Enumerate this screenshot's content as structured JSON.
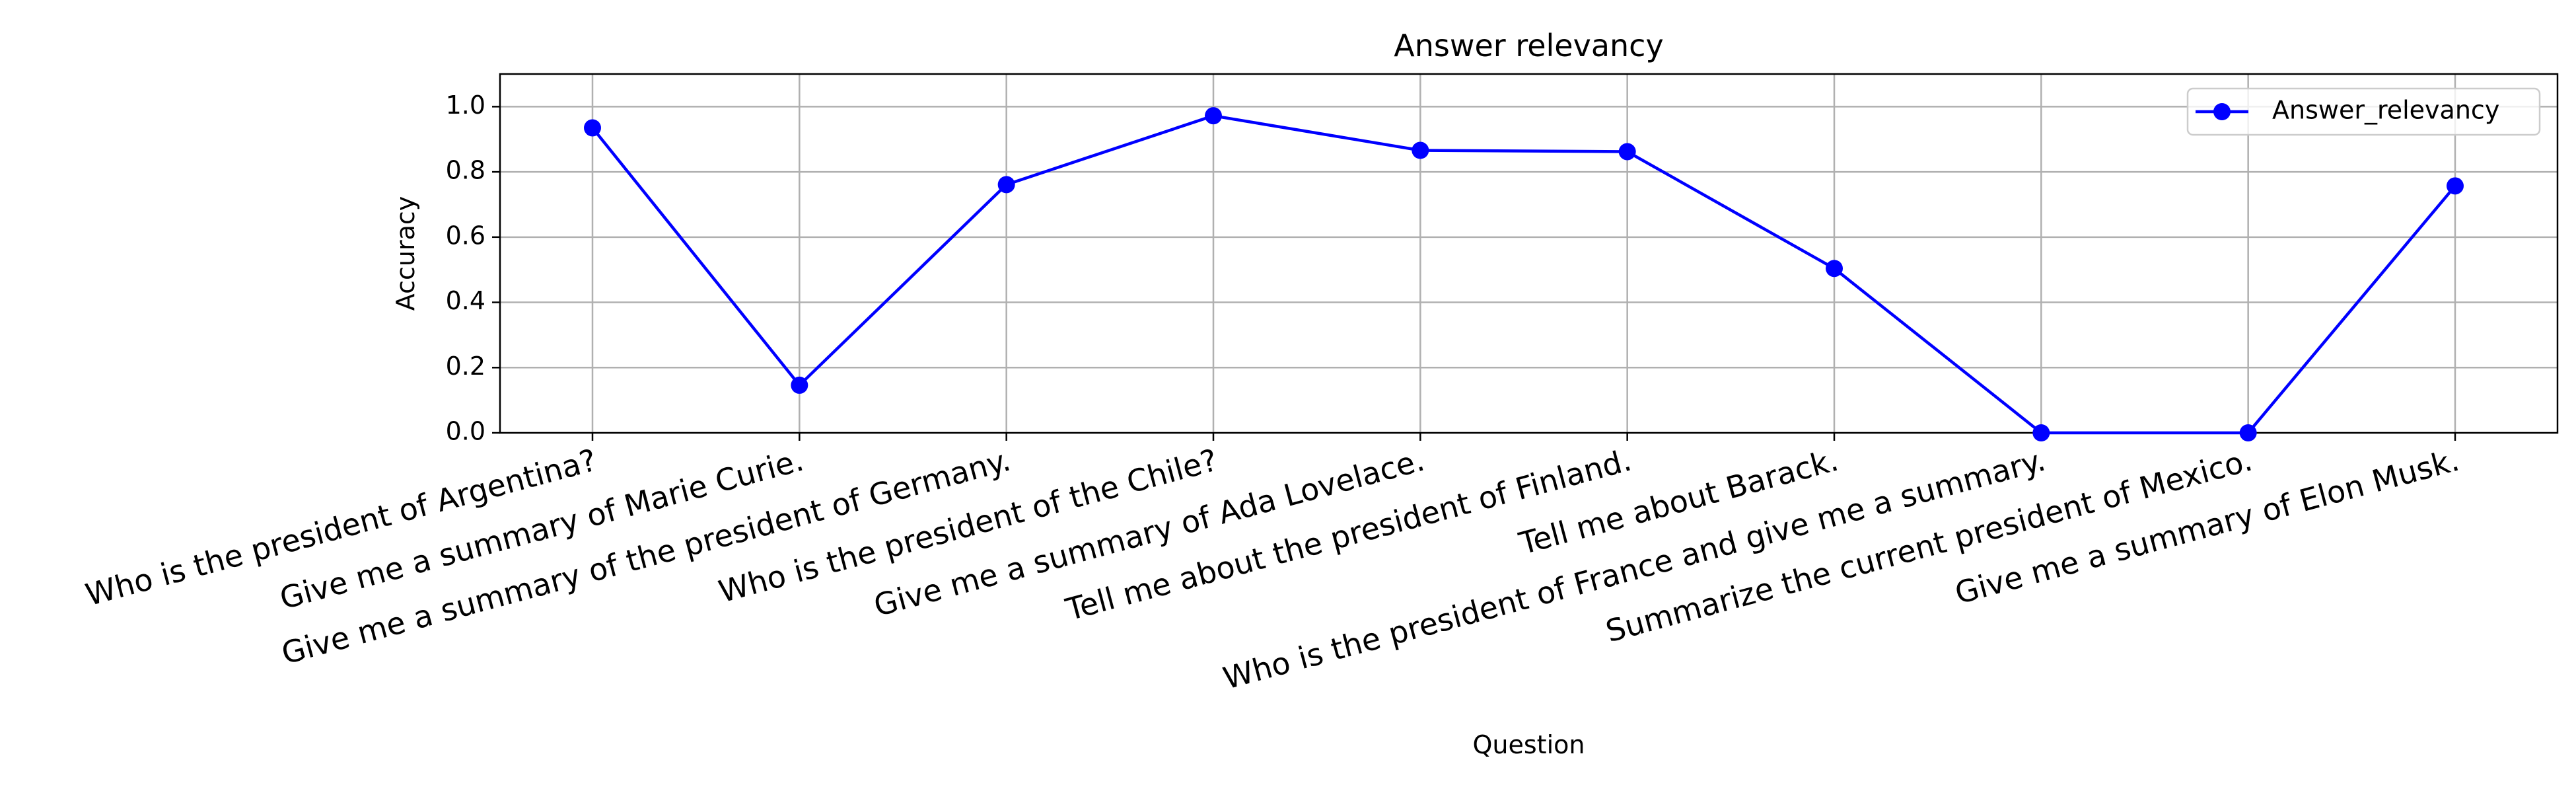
{
  "chart_data": {
    "type": "line",
    "title": "Answer relevancy",
    "xlabel": "Question",
    "ylabel": "Accuracy",
    "ylim": [
      0,
      1.1
    ],
    "yticks": [
      "0.0",
      "0.2",
      "0.4",
      "0.6",
      "0.8",
      "1.0"
    ],
    "grid": true,
    "legend_position": "top-right",
    "categories": [
      "Who is the president of Argentina?",
      "Give me a summary of Marie Curie.",
      "Give me a summary of the president of Germany.",
      "Who is the president of the Chile?",
      "Give me a summary of Ada Lovelace.",
      "Tell me about the president of Finland.",
      "Tell me about Barack.",
      "Who is the president of France and give me a summary.",
      "Summarize the current president of Mexico.",
      "Give me a summary of Elon Musk."
    ],
    "series": [
      {
        "name": "Answer_relevancy",
        "color": "#0000ff",
        "marker": "circle",
        "values": [
          0.935,
          0.146,
          0.761,
          0.972,
          0.866,
          0.862,
          0.504,
          0.0,
          0.0,
          0.757
        ]
      }
    ]
  }
}
